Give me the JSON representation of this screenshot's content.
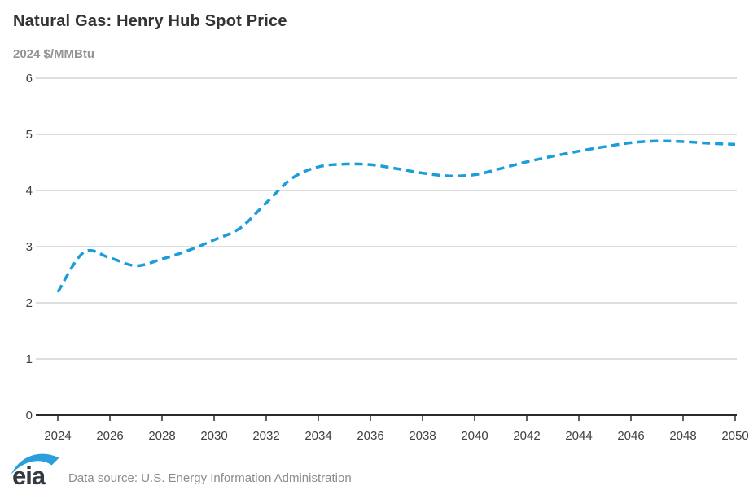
{
  "header": {
    "title": "Natural Gas: Henry Hub Spot Price",
    "units_label": "2024 $/MMBtu"
  },
  "footer": {
    "logo_text": "eia",
    "source_text": "Data source: U.S. Energy Information Administration"
  },
  "colors": {
    "line": "#1A9DD9",
    "grid": "#CBCBCB",
    "axis": "#2B2B2B",
    "tick_label": "#404040",
    "title": "#333333",
    "subtitle": "#949494",
    "source_text": "#8C8C8C",
    "logo_text": "#343A40",
    "logo_swoosh": "#2B9FDB"
  },
  "chart_data": {
    "type": "line",
    "title": "Natural Gas: Henry Hub Spot Price",
    "ylabel": "2024 $/MMBtu",
    "xlabel": "",
    "x": [
      2024,
      2025,
      2026,
      2027,
      2028,
      2029,
      2030,
      2031,
      2032,
      2033,
      2034,
      2035,
      2036,
      2037,
      2038,
      2039,
      2040,
      2041,
      2042,
      2043,
      2044,
      2045,
      2046,
      2047,
      2048,
      2049,
      2050
    ],
    "series": [
      {
        "name": "Henry Hub spot price",
        "style": "dashed",
        "values": [
          2.19,
          2.9,
          2.8,
          2.66,
          2.78,
          2.93,
          3.12,
          3.33,
          3.78,
          4.22,
          4.42,
          4.47,
          4.46,
          4.39,
          4.31,
          4.26,
          4.28,
          4.39,
          4.51,
          4.61,
          4.7,
          4.78,
          4.85,
          4.88,
          4.87,
          4.84,
          4.82
        ]
      }
    ],
    "ylim": [
      0,
      6
    ],
    "yticks": [
      0,
      1,
      2,
      3,
      4,
      5,
      6
    ],
    "xticks": [
      2024,
      2026,
      2028,
      2030,
      2032,
      2034,
      2036,
      2038,
      2040,
      2042,
      2044,
      2046,
      2048,
      2050
    ],
    "grid": true,
    "legend": "none"
  }
}
